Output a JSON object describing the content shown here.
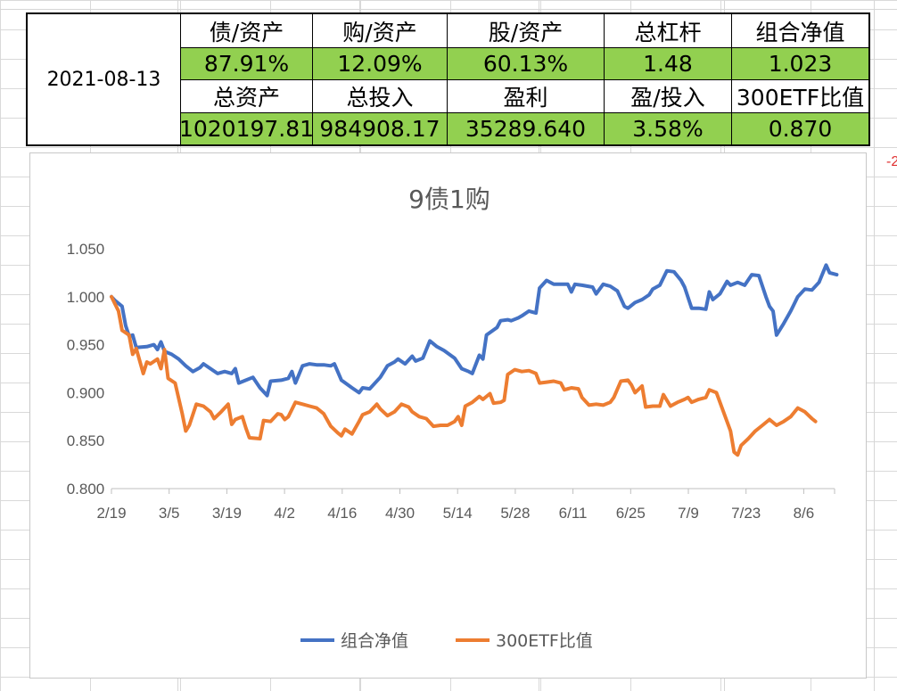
{
  "summary": {
    "date": "2021-08-13",
    "row1_headers": [
      "债/资产",
      "购/资产",
      "股/资产",
      "总杠杆",
      "组合净值"
    ],
    "row1_values": [
      "87.91%",
      "12.09%",
      "60.13%",
      "1.48",
      "1.023"
    ],
    "row2_headers": [
      "总资产",
      "总投入",
      "盈利",
      "盈/投入",
      "300ETF比值"
    ],
    "row2_values": [
      "1020197.81",
      "984908.17",
      "35289.640",
      "3.58%",
      "0.870"
    ]
  },
  "offscreen_mark": "-2",
  "chart_data": {
    "type": "line",
    "title": "9债1购",
    "ylim": [
      0.8,
      1.05
    ],
    "yticks": [
      "0.800",
      "0.850",
      "0.900",
      "0.950",
      "1.000",
      "1.050"
    ],
    "xticks": [
      "2/19",
      "3/5",
      "3/19",
      "4/2",
      "4/16",
      "4/30",
      "5/14",
      "5/28",
      "6/11",
      "6/25",
      "7/9",
      "7/23",
      "8/6"
    ],
    "x_start": "2021-02-19",
    "x_end": "2021-08-13",
    "legend_position": "bottom",
    "series": [
      {
        "name": "组合净值",
        "color": "#4472c4",
        "points": [
          [
            "2021-02-19",
            1.0
          ],
          [
            "2021-02-20",
            0.996
          ],
          [
            "2021-02-22",
            0.99
          ],
          [
            "2021-02-23",
            0.97
          ],
          [
            "2021-02-24",
            0.959
          ],
          [
            "2021-02-25",
            0.96
          ],
          [
            "2021-02-26",
            0.947
          ],
          [
            "2021-03-01",
            0.948
          ],
          [
            "2021-03-03",
            0.95
          ],
          [
            "2021-03-04",
            0.945
          ],
          [
            "2021-03-05",
            0.953
          ],
          [
            "2021-03-06",
            0.943
          ],
          [
            "2021-03-08",
            0.94
          ],
          [
            "2021-03-10",
            0.935
          ],
          [
            "2021-03-12",
            0.928
          ],
          [
            "2021-03-14",
            0.922
          ],
          [
            "2021-03-16",
            0.926
          ],
          [
            "2021-03-17",
            0.93
          ],
          [
            "2021-03-19",
            0.925
          ],
          [
            "2021-03-21",
            0.92
          ],
          [
            "2021-03-23",
            0.922
          ],
          [
            "2021-03-25",
            0.92
          ],
          [
            "2021-03-26",
            0.925
          ],
          [
            "2021-03-27",
            0.91
          ],
          [
            "2021-03-29",
            0.913
          ],
          [
            "2021-03-31",
            0.916
          ],
          [
            "2021-04-02",
            0.905
          ],
          [
            "2021-04-04",
            0.897
          ],
          [
            "2021-04-05",
            0.912
          ],
          [
            "2021-04-08",
            0.913
          ],
          [
            "2021-04-10",
            0.915
          ],
          [
            "2021-04-11",
            0.922
          ],
          [
            "2021-04-12",
            0.91
          ],
          [
            "2021-04-14",
            0.928
          ],
          [
            "2021-04-16",
            0.93
          ],
          [
            "2021-04-18",
            0.929
          ],
          [
            "2021-04-20",
            0.929
          ],
          [
            "2021-04-22",
            0.928
          ],
          [
            "2021-04-23",
            0.93
          ],
          [
            "2021-04-25",
            0.913
          ],
          [
            "2021-04-28",
            0.905
          ],
          [
            "2021-04-30",
            0.9
          ],
          [
            "2021-05-01",
            0.905
          ],
          [
            "2021-05-03",
            0.904
          ],
          [
            "2021-05-06",
            0.916
          ],
          [
            "2021-05-08",
            0.928
          ],
          [
            "2021-05-10",
            0.932
          ],
          [
            "2021-05-11",
            0.935
          ],
          [
            "2021-05-13",
            0.93
          ],
          [
            "2021-05-15",
            0.938
          ],
          [
            "2021-05-16",
            0.933
          ],
          [
            "2021-05-18",
            0.936
          ],
          [
            "2021-05-20",
            0.954
          ],
          [
            "2021-05-22",
            0.948
          ],
          [
            "2021-05-24",
            0.944
          ],
          [
            "2021-05-27",
            0.936
          ],
          [
            "2021-05-29",
            0.925
          ],
          [
            "2021-05-31",
            0.922
          ],
          [
            "2021-06-01",
            0.92
          ],
          [
            "2021-06-03",
            0.939
          ],
          [
            "2021-06-04",
            0.935
          ],
          [
            "2021-06-05",
            0.96
          ],
          [
            "2021-06-08",
            0.968
          ],
          [
            "2021-06-09",
            0.975
          ],
          [
            "2021-06-11",
            0.976
          ],
          [
            "2021-06-12",
            0.975
          ],
          [
            "2021-06-14",
            0.978
          ],
          [
            "2021-06-15",
            0.98
          ],
          [
            "2021-06-17",
            0.985
          ],
          [
            "2021-06-19",
            0.983
          ],
          [
            "2021-06-20",
            1.009
          ],
          [
            "2021-06-22",
            1.017
          ],
          [
            "2021-06-24",
            1.013
          ],
          [
            "2021-06-26",
            1.013
          ],
          [
            "2021-06-28",
            1.013
          ],
          [
            "2021-06-29",
            1.005
          ],
          [
            "2021-06-30",
            1.013
          ],
          [
            "2021-07-02",
            1.012
          ],
          [
            "2021-07-05",
            1.01
          ],
          [
            "2021-07-06",
            1.003
          ],
          [
            "2021-07-08",
            1.013
          ],
          [
            "2021-07-10",
            1.011
          ],
          [
            "2021-07-12",
            1.006
          ],
          [
            "2021-07-14",
            0.99
          ],
          [
            "2021-07-15",
            0.988
          ],
          [
            "2021-07-17",
            0.994
          ],
          [
            "2021-07-19",
            0.997
          ],
          [
            "2021-07-21",
            1.002
          ],
          [
            "2021-07-22",
            1.008
          ],
          [
            "2021-07-24",
            1.012
          ],
          [
            "2021-07-26",
            1.027
          ],
          [
            "2021-07-28",
            1.026
          ],
          [
            "2021-07-30",
            1.017
          ],
          [
            "2021-07-31",
            1.01
          ],
          [
            "2021-08-02",
            0.988
          ],
          [
            "2021-08-04",
            0.988
          ],
          [
            "2021-08-06",
            0.987
          ],
          [
            "2021-08-07",
            1.005
          ],
          [
            "2021-08-08",
            0.997
          ],
          [
            "2021-08-10",
            1.003
          ],
          [
            "2021-08-12",
            1.016
          ],
          [
            "2021-08-13",
            1.012
          ],
          [
            "2021-08-15",
            1.015
          ],
          [
            "2021-08-17",
            1.012
          ],
          [
            "2021-08-19",
            1.023
          ],
          [
            "2021-08-21",
            1.022
          ],
          [
            "2021-08-23",
            1.0
          ],
          [
            "2021-08-24",
            0.99
          ],
          [
            "2021-08-25",
            0.985
          ],
          [
            "2021-08-26",
            0.96
          ],
          [
            "2021-08-28",
            0.972
          ],
          [
            "2021-08-30",
            0.985
          ],
          [
            "2021-09-01",
            1.0
          ],
          [
            "2021-09-03",
            1.008
          ],
          [
            "2021-09-05",
            1.007
          ],
          [
            "2021-09-07",
            1.015
          ],
          [
            "2021-09-09",
            1.033
          ],
          [
            "2021-09-10",
            1.025
          ],
          [
            "2021-09-12",
            1.023
          ]
        ]
      },
      {
        "name": "300ETF比值",
        "color": "#ed7d31",
        "points": [
          [
            "2021-02-19",
            1.0
          ],
          [
            "2021-02-21",
            0.985
          ],
          [
            "2021-02-22",
            0.965
          ],
          [
            "2021-02-24",
            0.96
          ],
          [
            "2021-02-25",
            0.94
          ],
          [
            "2021-02-26",
            0.946
          ],
          [
            "2021-02-28",
            0.92
          ],
          [
            "2021-03-01",
            0.932
          ],
          [
            "2021-03-02",
            0.93
          ],
          [
            "2021-03-04",
            0.935
          ],
          [
            "2021-03-05",
            0.925
          ],
          [
            "2021-03-06",
            0.945
          ],
          [
            "2021-03-07",
            0.915
          ],
          [
            "2021-03-09",
            0.91
          ],
          [
            "2021-03-11",
            0.878
          ],
          [
            "2021-03-12",
            0.86
          ],
          [
            "2021-03-13",
            0.866
          ],
          [
            "2021-03-15",
            0.888
          ],
          [
            "2021-03-17",
            0.886
          ],
          [
            "2021-03-19",
            0.88
          ],
          [
            "2021-03-20",
            0.873
          ],
          [
            "2021-03-22",
            0.88
          ],
          [
            "2021-03-24",
            0.888
          ],
          [
            "2021-03-25",
            0.867
          ],
          [
            "2021-03-26",
            0.872
          ],
          [
            "2021-03-28",
            0.875
          ],
          [
            "2021-03-29",
            0.863
          ],
          [
            "2021-03-30",
            0.853
          ],
          [
            "2021-04-02",
            0.852
          ],
          [
            "2021-04-03",
            0.871
          ],
          [
            "2021-04-05",
            0.87
          ],
          [
            "2021-04-07",
            0.878
          ],
          [
            "2021-04-08",
            0.877
          ],
          [
            "2021-04-09",
            0.872
          ],
          [
            "2021-04-10",
            0.875
          ],
          [
            "2021-04-12",
            0.89
          ],
          [
            "2021-04-14",
            0.888
          ],
          [
            "2021-04-16",
            0.886
          ],
          [
            "2021-04-18",
            0.884
          ],
          [
            "2021-04-20",
            0.878
          ],
          [
            "2021-04-22",
            0.865
          ],
          [
            "2021-04-24",
            0.858
          ],
          [
            "2021-04-25",
            0.855
          ],
          [
            "2021-04-26",
            0.862
          ],
          [
            "2021-04-28",
            0.857
          ],
          [
            "2021-04-30",
            0.87
          ],
          [
            "2021-05-01",
            0.877
          ],
          [
            "2021-05-03",
            0.88
          ],
          [
            "2021-05-05",
            0.888
          ],
          [
            "2021-05-06",
            0.883
          ],
          [
            "2021-05-08",
            0.876
          ],
          [
            "2021-05-10",
            0.88
          ],
          [
            "2021-05-12",
            0.888
          ],
          [
            "2021-05-14",
            0.885
          ],
          [
            "2021-05-15",
            0.88
          ],
          [
            "2021-05-17",
            0.875
          ],
          [
            "2021-05-19",
            0.873
          ],
          [
            "2021-05-21",
            0.865
          ],
          [
            "2021-05-23",
            0.866
          ],
          [
            "2021-05-25",
            0.866
          ],
          [
            "2021-05-27",
            0.87
          ],
          [
            "2021-05-28",
            0.875
          ],
          [
            "2021-05-29",
            0.866
          ],
          [
            "2021-05-30",
            0.886
          ],
          [
            "2021-06-01",
            0.89
          ],
          [
            "2021-06-03",
            0.896
          ],
          [
            "2021-06-04",
            0.893
          ],
          [
            "2021-06-06",
            0.899
          ],
          [
            "2021-06-07",
            0.889
          ],
          [
            "2021-06-09",
            0.89
          ],
          [
            "2021-06-10",
            0.892
          ],
          [
            "2021-06-11",
            0.919
          ],
          [
            "2021-06-13",
            0.924
          ],
          [
            "2021-06-15",
            0.922
          ],
          [
            "2021-06-17",
            0.923
          ],
          [
            "2021-06-19",
            0.92
          ],
          [
            "2021-06-20",
            0.91
          ],
          [
            "2021-06-22",
            0.911
          ],
          [
            "2021-06-24",
            0.912
          ],
          [
            "2021-06-26",
            0.91
          ],
          [
            "2021-06-27",
            0.903
          ],
          [
            "2021-06-29",
            0.905
          ],
          [
            "2021-07-01",
            0.904
          ],
          [
            "2021-07-02",
            0.895
          ],
          [
            "2021-07-04",
            0.887
          ],
          [
            "2021-07-06",
            0.888
          ],
          [
            "2021-07-08",
            0.887
          ],
          [
            "2021-07-10",
            0.89
          ],
          [
            "2021-07-11",
            0.895
          ],
          [
            "2021-07-13",
            0.912
          ],
          [
            "2021-07-15",
            0.913
          ],
          [
            "2021-07-16",
            0.908
          ],
          [
            "2021-07-17",
            0.9
          ],
          [
            "2021-07-19",
            0.907
          ],
          [
            "2021-07-20",
            0.885
          ],
          [
            "2021-07-22",
            0.886
          ],
          [
            "2021-07-24",
            0.886
          ],
          [
            "2021-07-25",
            0.898
          ],
          [
            "2021-07-27",
            0.886
          ],
          [
            "2021-07-29",
            0.89
          ],
          [
            "2021-07-31",
            0.893
          ],
          [
            "2021-08-01",
            0.895
          ],
          [
            "2021-08-02",
            0.89
          ],
          [
            "2021-08-04",
            0.893
          ],
          [
            "2021-08-06",
            0.895
          ],
          [
            "2021-08-07",
            0.903
          ],
          [
            "2021-08-09",
            0.9
          ],
          [
            "2021-08-11",
            0.88
          ],
          [
            "2021-08-13",
            0.86
          ],
          [
            "2021-08-14",
            0.838
          ],
          [
            "2021-08-15",
            0.835
          ],
          [
            "2021-08-16",
            0.845
          ],
          [
            "2021-08-18",
            0.852
          ],
          [
            "2021-08-20",
            0.86
          ],
          [
            "2021-08-22",
            0.866
          ],
          [
            "2021-08-24",
            0.872
          ],
          [
            "2021-08-26",
            0.866
          ],
          [
            "2021-08-28",
            0.87
          ],
          [
            "2021-08-30",
            0.875
          ],
          [
            "2021-09-01",
            0.884
          ],
          [
            "2021-09-03",
            0.88
          ],
          [
            "2021-09-05",
            0.873
          ],
          [
            "2021-09-06",
            0.87
          ]
        ]
      }
    ]
  }
}
